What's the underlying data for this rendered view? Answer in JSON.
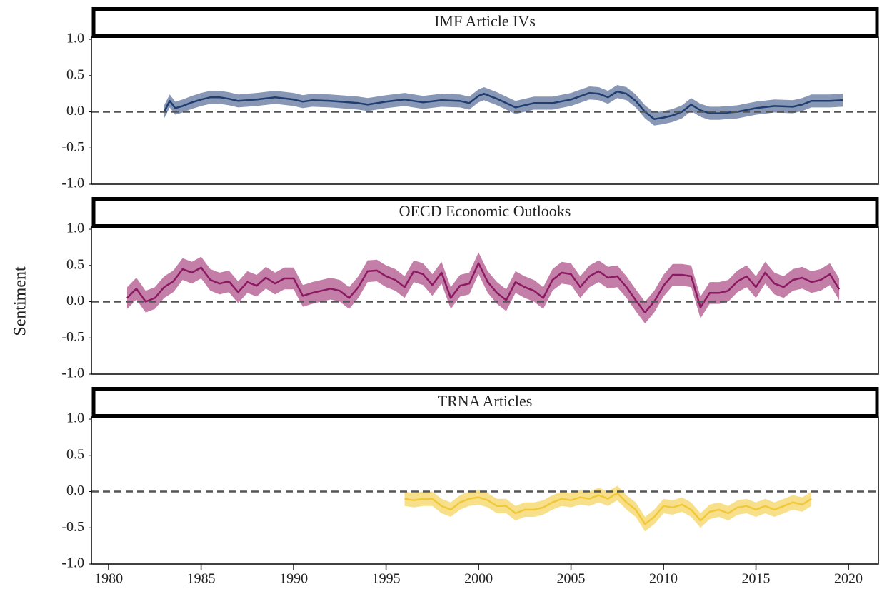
{
  "ylabel": "Sentiment",
  "chart_data": [
    {
      "type": "line",
      "title": "IMF Article IVs",
      "xlim": [
        1979.07,
        2021.62
      ],
      "ylim": [
        -1.0,
        1.03
      ],
      "yticks": [
        {
          "value": 1,
          "label": "1.0"
        },
        0.5,
        {
          "value": 0,
          "label": "0.0"
        },
        -0.5,
        {
          "value": -1,
          "label": "-1.0"
        }
      ],
      "hline": 0,
      "series": [
        {
          "color": "#1f3d6e",
          "band_color": "#8797b5",
          "x": [
            1983,
            1983.3,
            1983.6,
            1984,
            1984.5,
            1985,
            1985.5,
            1986,
            1986.5,
            1987,
            1988,
            1989,
            1990,
            1990.5,
            1991,
            1992,
            1993,
            1993.5,
            1994,
            1995,
            1996,
            1997,
            1998,
            1999,
            1999.5,
            2000,
            2000.3,
            2001,
            2001.5,
            2002,
            2003,
            2004,
            2005,
            2006,
            2006.5,
            2007,
            2007.5,
            2008,
            2008.5,
            2009,
            2009.5,
            2010,
            2010.5,
            2011,
            2011.5,
            2012,
            2012.5,
            2013,
            2014,
            2015,
            2016,
            2017,
            2017.5,
            2018,
            2019,
            2019.7
          ],
          "values": [
            0.0,
            0.15,
            0.05,
            0.08,
            0.13,
            0.17,
            0.2,
            0.2,
            0.18,
            0.15,
            0.17,
            0.2,
            0.17,
            0.14,
            0.16,
            0.15,
            0.13,
            0.12,
            0.1,
            0.14,
            0.17,
            0.13,
            0.16,
            0.15,
            0.12,
            0.22,
            0.25,
            0.18,
            0.12,
            0.06,
            0.12,
            0.12,
            0.17,
            0.26,
            0.25,
            0.2,
            0.28,
            0.25,
            0.15,
            0.0,
            -0.1,
            -0.08,
            -0.05,
            0.0,
            0.1,
            0.02,
            -0.02,
            -0.02,
            0.0,
            0.05,
            0.08,
            0.07,
            0.1,
            0.15,
            0.15,
            0.16
          ],
          "upper": [
            0.09,
            0.24,
            0.14,
            0.17,
            0.22,
            0.26,
            0.29,
            0.29,
            0.27,
            0.24,
            0.26,
            0.29,
            0.26,
            0.23,
            0.25,
            0.24,
            0.22,
            0.21,
            0.19,
            0.23,
            0.26,
            0.22,
            0.25,
            0.24,
            0.21,
            0.31,
            0.34,
            0.27,
            0.21,
            0.15,
            0.21,
            0.21,
            0.26,
            0.35,
            0.34,
            0.29,
            0.37,
            0.34,
            0.24,
            0.09,
            -0.01,
            0.01,
            0.04,
            0.09,
            0.19,
            0.11,
            0.07,
            0.07,
            0.09,
            0.14,
            0.17,
            0.16,
            0.19,
            0.24,
            0.24,
            0.25
          ],
          "lower": [
            -0.09,
            0.06,
            -0.04,
            -0.01,
            0.04,
            0.08,
            0.11,
            0.11,
            0.09,
            0.06,
            0.08,
            0.11,
            0.08,
            0.05,
            0.07,
            0.06,
            0.04,
            0.03,
            0.01,
            0.05,
            0.08,
            0.04,
            0.07,
            0.06,
            0.03,
            0.13,
            0.16,
            0.09,
            0.03,
            -0.03,
            0.03,
            0.03,
            0.08,
            0.17,
            0.16,
            0.11,
            0.19,
            0.16,
            0.06,
            -0.09,
            -0.19,
            -0.17,
            -0.14,
            -0.09,
            0.01,
            -0.07,
            -0.11,
            -0.11,
            -0.09,
            -0.04,
            -0.01,
            -0.02,
            0.01,
            0.06,
            0.06,
            0.07
          ]
        }
      ]
    },
    {
      "type": "line",
      "title": "OECD Economic Outlooks",
      "xlim": [
        1979.07,
        2021.62
      ],
      "ylim": [
        -1.0,
        1.03
      ],
      "yticks": [
        {
          "value": 1,
          "label": "1.0"
        },
        0.5,
        {
          "value": 0,
          "label": "0.0"
        },
        -0.5,
        {
          "value": -1,
          "label": "-1.0"
        }
      ],
      "hline": 0,
      "series": [
        {
          "color": "#8b1a62",
          "band_color": "#c47fa9",
          "x": [
            1981,
            1981.5,
            1982,
            1982.5,
            1983,
            1983.5,
            1984,
            1984.5,
            1985,
            1985.5,
            1986,
            1986.5,
            1987,
            1987.5,
            1988,
            1988.5,
            1989,
            1989.5,
            1990,
            1990.5,
            1991,
            1991.5,
            1992,
            1992.5,
            1993,
            1993.5,
            1994,
            1994.5,
            1995,
            1995.5,
            1996,
            1996.5,
            1997,
            1997.5,
            1998,
            1998.5,
            1999,
            1999.5,
            2000,
            2000.5,
            2001,
            2001.5,
            2002,
            2002.5,
            2003,
            2003.5,
            2004,
            2004.5,
            2005,
            2005.5,
            2006,
            2006.5,
            2007,
            2007.5,
            2008,
            2008.5,
            2009,
            2009.5,
            2010,
            2010.5,
            2011,
            2011.5,
            2012,
            2012.5,
            2013,
            2013.5,
            2014,
            2014.5,
            2015,
            2015.5,
            2016,
            2016.5,
            2017,
            2017.5,
            2018,
            2018.5,
            2019,
            2019.5
          ],
          "values": [
            0.05,
            0.18,
            0.0,
            0.05,
            0.2,
            0.28,
            0.45,
            0.4,
            0.47,
            0.3,
            0.25,
            0.28,
            0.13,
            0.27,
            0.22,
            0.33,
            0.25,
            0.32,
            0.32,
            0.08,
            0.12,
            0.15,
            0.18,
            0.15,
            0.05,
            0.2,
            0.42,
            0.43,
            0.35,
            0.3,
            0.2,
            0.42,
            0.38,
            0.23,
            0.4,
            0.05,
            0.22,
            0.25,
            0.53,
            0.27,
            0.12,
            0.02,
            0.27,
            0.2,
            0.15,
            0.05,
            0.3,
            0.4,
            0.38,
            0.2,
            0.35,
            0.42,
            0.33,
            0.35,
            0.2,
            0.02,
            -0.15,
            0.0,
            0.22,
            0.37,
            0.37,
            0.35,
            -0.08,
            0.12,
            0.12,
            0.15,
            0.28,
            0.35,
            0.2,
            0.4,
            0.25,
            0.2,
            0.3,
            0.33,
            0.27,
            0.3,
            0.38,
            0.17
          ],
          "upper": [
            0.2,
            0.33,
            0.15,
            0.2,
            0.35,
            0.43,
            0.6,
            0.55,
            0.62,
            0.45,
            0.4,
            0.43,
            0.28,
            0.42,
            0.37,
            0.48,
            0.4,
            0.47,
            0.47,
            0.23,
            0.27,
            0.3,
            0.33,
            0.3,
            0.2,
            0.35,
            0.57,
            0.58,
            0.5,
            0.45,
            0.35,
            0.57,
            0.53,
            0.38,
            0.55,
            0.2,
            0.37,
            0.4,
            0.68,
            0.42,
            0.27,
            0.17,
            0.42,
            0.35,
            0.3,
            0.2,
            0.45,
            0.55,
            0.53,
            0.35,
            0.5,
            0.57,
            0.48,
            0.5,
            0.35,
            0.17,
            0.0,
            0.15,
            0.37,
            0.52,
            0.52,
            0.5,
            0.07,
            0.27,
            0.27,
            0.3,
            0.43,
            0.5,
            0.35,
            0.55,
            0.4,
            0.35,
            0.45,
            0.48,
            0.42,
            0.45,
            0.53,
            0.32
          ],
          "lower": [
            -0.1,
            0.03,
            -0.15,
            -0.1,
            0.05,
            0.13,
            0.3,
            0.25,
            0.32,
            0.15,
            0.1,
            0.13,
            -0.02,
            0.12,
            0.07,
            0.18,
            0.1,
            0.17,
            0.17,
            -0.07,
            -0.03,
            0.0,
            0.03,
            0.0,
            -0.1,
            0.05,
            0.27,
            0.28,
            0.2,
            0.15,
            0.05,
            0.27,
            0.23,
            0.08,
            0.25,
            -0.1,
            0.07,
            0.1,
            0.38,
            0.12,
            -0.03,
            -0.13,
            0.12,
            0.05,
            0.0,
            -0.1,
            0.15,
            0.25,
            0.23,
            0.05,
            0.2,
            0.27,
            0.18,
            0.2,
            0.05,
            -0.13,
            -0.3,
            -0.15,
            0.07,
            0.22,
            0.22,
            0.2,
            -0.23,
            -0.03,
            -0.03,
            0.0,
            0.13,
            0.2,
            0.05,
            0.25,
            0.1,
            0.05,
            0.15,
            0.18,
            0.12,
            0.15,
            0.23,
            0.02
          ]
        }
      ]
    },
    {
      "type": "line",
      "title": "TRNA Articles",
      "xlim": [
        1979.07,
        2021.62
      ],
      "ylim": [
        -1.0,
        1.03
      ],
      "yticks": [
        {
          "value": 1,
          "label": "1.0"
        },
        0.5,
        {
          "value": 0,
          "label": "0.0"
        },
        -0.5,
        {
          "value": -1,
          "label": "-1.0"
        }
      ],
      "xticks": [
        1980,
        1985,
        1990,
        1995,
        2000,
        2005,
        2010,
        2015,
        2020
      ],
      "hline": 0,
      "series": [
        {
          "color": "#f0c83a",
          "band_color": "#f8e08a",
          "x": [
            1996,
            1996.5,
            1997,
            1997.5,
            1998,
            1998.5,
            1999,
            1999.5,
            2000,
            2000.5,
            2001,
            2001.5,
            2002,
            2002.5,
            2003,
            2003.5,
            2004,
            2004.5,
            2005,
            2005.5,
            2006,
            2006.5,
            2007,
            2007.5,
            2008,
            2008.5,
            2009,
            2009.5,
            2010,
            2010.5,
            2011,
            2011.5,
            2012,
            2012.5,
            2013,
            2013.5,
            2014,
            2014.5,
            2015,
            2015.5,
            2016,
            2016.5,
            2017,
            2017.5,
            2018
          ],
          "values": [
            -0.1,
            -0.12,
            -0.1,
            -0.1,
            -0.2,
            -0.25,
            -0.15,
            -0.1,
            -0.08,
            -0.12,
            -0.2,
            -0.2,
            -0.3,
            -0.25,
            -0.25,
            -0.22,
            -0.15,
            -0.1,
            -0.12,
            -0.08,
            -0.1,
            -0.05,
            -0.1,
            -0.02,
            -0.15,
            -0.25,
            -0.45,
            -0.35,
            -0.2,
            -0.22,
            -0.18,
            -0.25,
            -0.4,
            -0.28,
            -0.25,
            -0.3,
            -0.22,
            -0.2,
            -0.25,
            -0.2,
            -0.25,
            -0.2,
            -0.15,
            -0.18,
            -0.1
          ],
          "upper": [
            0.0,
            -0.02,
            0.0,
            0.0,
            -0.1,
            -0.15,
            -0.05,
            0.0,
            0.02,
            -0.02,
            -0.1,
            -0.1,
            -0.2,
            -0.15,
            -0.15,
            -0.12,
            -0.05,
            0.0,
            -0.02,
            0.02,
            0.0,
            0.05,
            0.0,
            0.08,
            -0.05,
            -0.15,
            -0.35,
            -0.25,
            -0.1,
            -0.12,
            -0.08,
            -0.15,
            -0.3,
            -0.18,
            -0.15,
            -0.2,
            -0.12,
            -0.1,
            -0.15,
            -0.1,
            -0.15,
            -0.1,
            -0.05,
            -0.08,
            0.0
          ],
          "lower": [
            -0.2,
            -0.22,
            -0.2,
            -0.2,
            -0.3,
            -0.35,
            -0.25,
            -0.2,
            -0.18,
            -0.22,
            -0.3,
            -0.3,
            -0.4,
            -0.35,
            -0.35,
            -0.32,
            -0.25,
            -0.2,
            -0.22,
            -0.18,
            -0.2,
            -0.15,
            -0.2,
            -0.12,
            -0.25,
            -0.35,
            -0.55,
            -0.45,
            -0.3,
            -0.32,
            -0.28,
            -0.35,
            -0.5,
            -0.38,
            -0.35,
            -0.4,
            -0.32,
            -0.3,
            -0.35,
            -0.3,
            -0.35,
            -0.3,
            -0.25,
            -0.28,
            -0.2
          ]
        }
      ]
    }
  ]
}
